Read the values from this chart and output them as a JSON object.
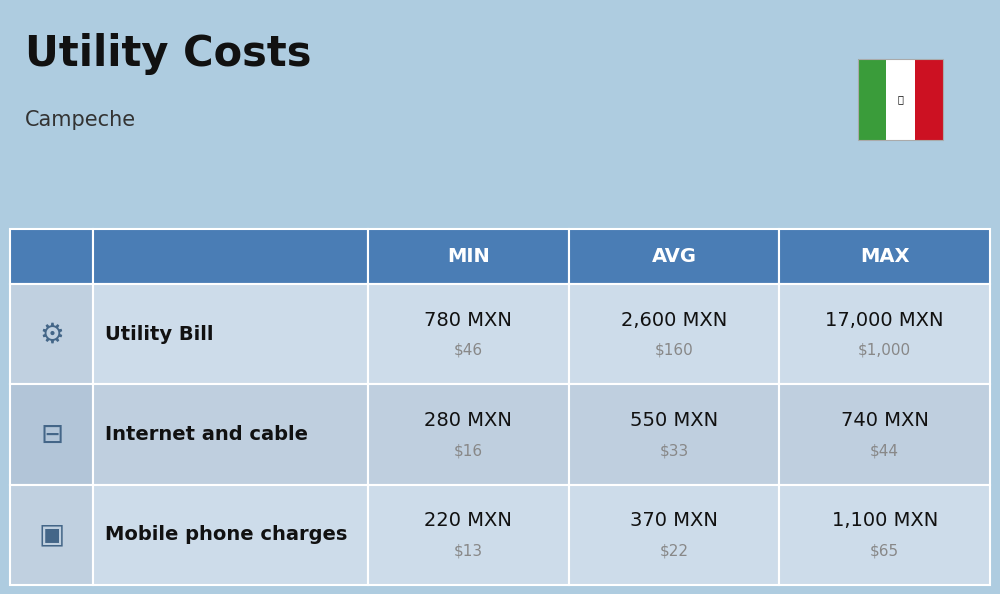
{
  "title": "Utility Costs",
  "subtitle": "Campeche",
  "background_color": "#aecce0",
  "header_color": "#4a7db5",
  "header_text_color": "#ffffff",
  "row_color_odd": "#cddcea",
  "row_color_even": "#bfcfdf",
  "icon_col_color_odd": "#c0d0e0",
  "icon_col_color_even": "#b2c5d8",
  "col_headers": [
    "MIN",
    "AVG",
    "MAX"
  ],
  "rows": [
    {
      "label": "Utility Bill",
      "min_mxn": "780 MXN",
      "min_usd": "$46",
      "avg_mxn": "2,600 MXN",
      "avg_usd": "$160",
      "max_mxn": "17,000 MXN",
      "max_usd": "$1,000"
    },
    {
      "label": "Internet and cable",
      "min_mxn": "280 MXN",
      "min_usd": "$16",
      "avg_mxn": "550 MXN",
      "avg_usd": "$33",
      "max_mxn": "740 MXN",
      "max_usd": "$44"
    },
    {
      "label": "Mobile phone charges",
      "min_mxn": "220 MXN",
      "min_usd": "$13",
      "avg_mxn": "370 MXN",
      "avg_usd": "$22",
      "max_mxn": "1,100 MXN",
      "max_usd": "$65"
    }
  ],
  "title_fontsize": 30,
  "subtitle_fontsize": 15,
  "header_fontsize": 14,
  "label_fontsize": 14,
  "value_fontsize": 14,
  "usd_fontsize": 11,
  "flag_green": "#3a9c3a",
  "flag_white": "#ffffff",
  "flag_red": "#cc1122"
}
